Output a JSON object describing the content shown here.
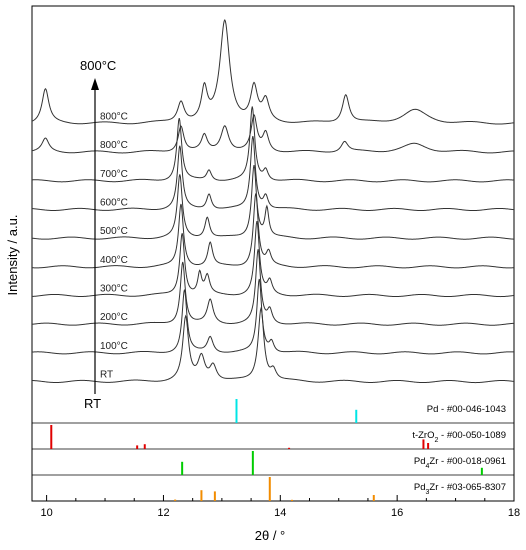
{
  "chart_data": {
    "type": "line",
    "xlabel": "2θ / °",
    "ylabel": "Intensity / a.u.",
    "xlim": [
      9.75,
      18
    ],
    "x_ticks": [
      10,
      12,
      14,
      16,
      18
    ],
    "arrow_top_label": "800°C",
    "arrow_bottom_label": "RT",
    "series": [
      {
        "name": "800°C",
        "baseline": 10.3,
        "peaks": [
          [
            9.98,
            1.3,
            0.07
          ],
          [
            12.3,
            0.8,
            0.07
          ],
          [
            12.7,
            1.2,
            0.06
          ],
          [
            13.05,
            3.9,
            0.1
          ],
          [
            13.55,
            1.3,
            0.07
          ],
          [
            13.75,
            0.8,
            0.07
          ],
          [
            15.12,
            1.1,
            0.07
          ],
          [
            16.3,
            0.5,
            0.25
          ]
        ]
      },
      {
        "name": "800°C",
        "baseline": 9.2,
        "peaks": [
          [
            9.98,
            0.5,
            0.07
          ],
          [
            12.3,
            1.0,
            0.06
          ],
          [
            12.7,
            0.6,
            0.06
          ],
          [
            13.05,
            1.0,
            0.08
          ],
          [
            13.55,
            1.3,
            0.06
          ],
          [
            13.75,
            0.7,
            0.06
          ],
          [
            15.1,
            0.4,
            0.07
          ],
          [
            16.3,
            0.3,
            0.25
          ]
        ]
      },
      {
        "name": "700°C",
        "baseline": 8.1,
        "peaks": [
          [
            12.27,
            2.4,
            0.05
          ],
          [
            12.78,
            0.4,
            0.05
          ],
          [
            13.52,
            2.8,
            0.05
          ],
          [
            13.75,
            0.4,
            0.05
          ]
        ]
      },
      {
        "name": "600°C",
        "baseline": 7.0,
        "peaks": [
          [
            12.28,
            2.4,
            0.05
          ],
          [
            12.78,
            0.6,
            0.05
          ],
          [
            13.53,
            2.8,
            0.05
          ],
          [
            13.75,
            0.5,
            0.05
          ]
        ]
      },
      {
        "name": "500°C",
        "baseline": 5.9,
        "peaks": [
          [
            12.28,
            2.4,
            0.05
          ],
          [
            12.75,
            0.8,
            0.05
          ],
          [
            13.55,
            2.8,
            0.05
          ],
          [
            13.77,
            1.1,
            0.04
          ]
        ]
      },
      {
        "name": "400°C",
        "baseline": 4.8,
        "peaks": [
          [
            12.3,
            2.4,
            0.05
          ],
          [
            12.8,
            0.9,
            0.05
          ],
          [
            13.58,
            2.8,
            0.05
          ],
          [
            13.8,
            0.5,
            0.05
          ]
        ]
      },
      {
        "name": "300°C",
        "baseline": 3.7,
        "peaks": [
          [
            12.32,
            2.4,
            0.05
          ],
          [
            12.62,
            0.8,
            0.04
          ],
          [
            12.75,
            0.7,
            0.05
          ],
          [
            13.6,
            2.8,
            0.05
          ],
          [
            13.82,
            0.5,
            0.05
          ]
        ]
      },
      {
        "name": "200°C",
        "baseline": 2.6,
        "peaks": [
          [
            12.33,
            2.4,
            0.05
          ],
          [
            12.8,
            0.9,
            0.06
          ],
          [
            13.62,
            2.8,
            0.05
          ],
          [
            13.82,
            0.5,
            0.05
          ]
        ]
      },
      {
        "name": "100°C",
        "baseline": 1.5,
        "peaks": [
          [
            12.36,
            2.4,
            0.05
          ],
          [
            12.8,
            0.6,
            0.06
          ],
          [
            13.64,
            2.8,
            0.05
          ],
          [
            13.85,
            0.4,
            0.05
          ]
        ]
      },
      {
        "name": "RT",
        "baseline": 0.4,
        "peaks": [
          [
            12.38,
            2.4,
            0.06
          ],
          [
            12.65,
            0.9,
            0.07
          ],
          [
            12.85,
            0.6,
            0.07
          ],
          [
            13.67,
            2.8,
            0.06
          ],
          [
            13.88,
            0.4,
            0.06
          ]
        ]
      }
    ],
    "references": [
      {
        "label": "Pd - #00-046-1043",
        "color": "#00e5e5",
        "lines": [
          [
            13.25,
            1.0
          ],
          [
            15.3,
            0.55
          ]
        ]
      },
      {
        "label": "t-ZrO",
        "label_sub": "2",
        "label_suffix": " - #00-050-1089",
        "color": "#e00000",
        "lines": [
          [
            10.08,
            1.0
          ],
          [
            11.55,
            0.15
          ],
          [
            11.68,
            0.2
          ],
          [
            14.15,
            0.05
          ],
          [
            16.45,
            0.4
          ],
          [
            16.53,
            0.25
          ]
        ]
      },
      {
        "label": "Pd",
        "label_sub": "4",
        "label_suffix": "Zr - #00-018-0961",
        "color": "#00cc00",
        "lines": [
          [
            12.32,
            0.55
          ],
          [
            13.53,
            1.0
          ],
          [
            17.45,
            0.3
          ]
        ]
      },
      {
        "label": "Pd",
        "label_sub": "3",
        "label_suffix": "Zr - #03-065-8307",
        "color": "#f28c00",
        "lines": [
          [
            12.2,
            0.06
          ],
          [
            12.65,
            0.45
          ],
          [
            12.88,
            0.4
          ],
          [
            13.82,
            1.0
          ],
          [
            14.2,
            0.05
          ],
          [
            15.6,
            0.25
          ]
        ]
      }
    ]
  }
}
